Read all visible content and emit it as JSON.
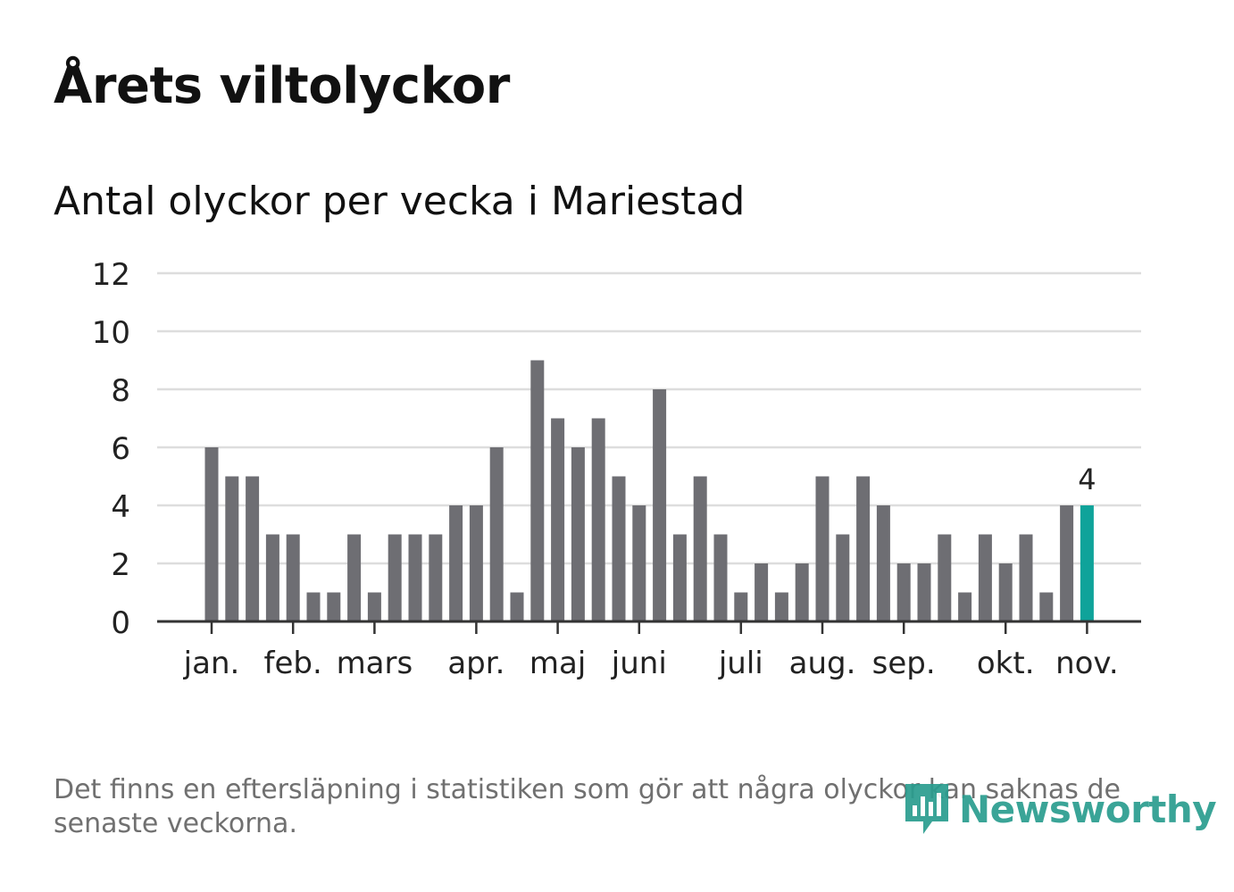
{
  "title": "Årets viltolyckor",
  "subtitle": "Antal olyckor per vecka i Mariestad",
  "footnote": "Det finns en eftersläpning i statistiken som gör att några olyckor kan saknas de senaste veckorna.",
  "brand": {
    "name": "Newsworthy",
    "color": "#2a9d8f",
    "icon": "bar-chart-speech-bubble-icon"
  },
  "colors": {
    "bar": "#6e6e73",
    "highlight": "#0fa39a",
    "grid": "#dddddd",
    "axis": "#333333",
    "text": "#222222"
  },
  "chart_data": {
    "type": "bar",
    "title": "Antal olyckor per vecka i Mariestad",
    "xlabel": "",
    "ylabel": "",
    "ylim": [
      0,
      12
    ],
    "yticks": [
      0,
      2,
      4,
      6,
      8,
      10,
      12
    ],
    "grid": true,
    "values": [
      6,
      5,
      5,
      3,
      3,
      1,
      1,
      3,
      1,
      3,
      3,
      3,
      4,
      4,
      6,
      1,
      9,
      7,
      6,
      7,
      5,
      4,
      8,
      3,
      5,
      3,
      1,
      2,
      1,
      2,
      5,
      3,
      5,
      4,
      2,
      2,
      3,
      1,
      3,
      2,
      3,
      1,
      4,
      4
    ],
    "highlight_index": 43,
    "highlight_label": "4",
    "month_labels": [
      {
        "label": "jan.",
        "week_index": 0
      },
      {
        "label": "feb.",
        "week_index": 4
      },
      {
        "label": "mars",
        "week_index": 8
      },
      {
        "label": "apr.",
        "week_index": 13
      },
      {
        "label": "maj",
        "week_index": 17
      },
      {
        "label": "juni",
        "week_index": 21
      },
      {
        "label": "juli",
        "week_index": 26
      },
      {
        "label": "aug.",
        "week_index": 30
      },
      {
        "label": "sep.",
        "week_index": 34
      },
      {
        "label": "okt.",
        "week_index": 39
      },
      {
        "label": "nov.",
        "week_index": 43
      }
    ]
  }
}
